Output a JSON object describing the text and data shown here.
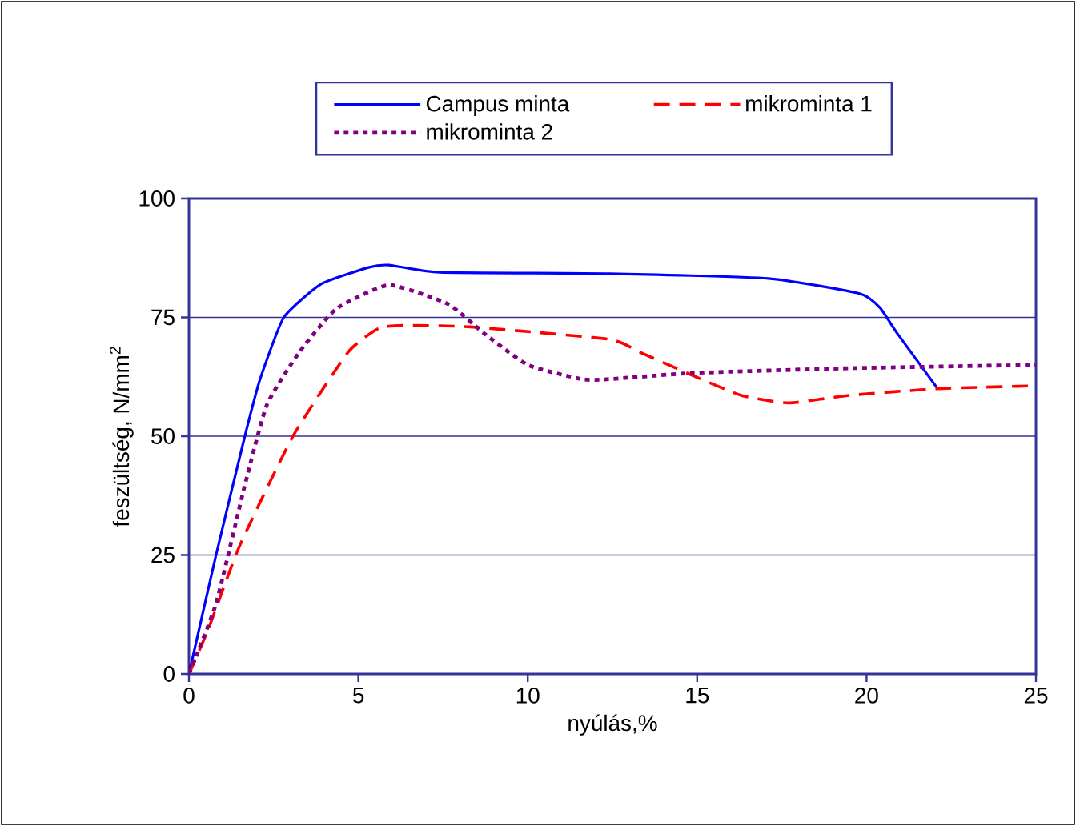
{
  "chart_data": {
    "type": "line",
    "xlabel": "nyúlás,%",
    "ylabel": "feszültség, N/mm$^{2}$",
    "xlim": [
      0,
      25
    ],
    "ylim": [
      0,
      100
    ],
    "xticks": [
      0,
      5,
      10,
      15,
      20,
      25
    ],
    "yticks": [
      0,
      25,
      50,
      75,
      100
    ],
    "grid": "y",
    "legend": "top",
    "series": [
      {
        "name": "Campus minta",
        "color": "#0000ff",
        "line_style": "solid",
        "x": [
          0,
          0.8,
          1.65,
          2.1,
          2.8,
          3.9,
          5.3,
          5.9,
          7.4,
          12.4,
          17.1,
          19.8,
          20.4,
          20.9,
          22.1
        ],
        "values": [
          0,
          25,
          50,
          62,
          75,
          82,
          85.5,
          86,
          84.5,
          84.2,
          83.2,
          80,
          77,
          71.7,
          60
        ]
      },
      {
        "name": "mikrominta 1",
        "color": "#ff0000",
        "line_style": "dashed",
        "x": [
          0,
          0.57,
          1.5,
          3.07,
          4.7,
          5.6,
          6.3,
          8.3,
          12.4,
          13.3,
          14.7,
          16.3,
          17.7,
          19.5,
          22.1,
          25
        ],
        "values": [
          0,
          9.4,
          27,
          50,
          67.7,
          72.7,
          73.3,
          73,
          70.4,
          67.7,
          63.3,
          58.6,
          57,
          58.6,
          60,
          60.6
        ]
      },
      {
        "name": "mikrominta 2",
        "color": "#800080",
        "line_style": "dotted",
        "x": [
          0,
          0.8,
          1.65,
          2.3,
          3.26,
          4.35,
          5.9,
          7.65,
          8.7,
          10,
          11.6,
          12.4,
          14.9,
          19.5,
          25
        ],
        "values": [
          0,
          14.8,
          39.7,
          56.6,
          67.7,
          76.8,
          81.8,
          77.8,
          71.7,
          65,
          62,
          62,
          63.3,
          64.3,
          65
        ]
      }
    ]
  }
}
